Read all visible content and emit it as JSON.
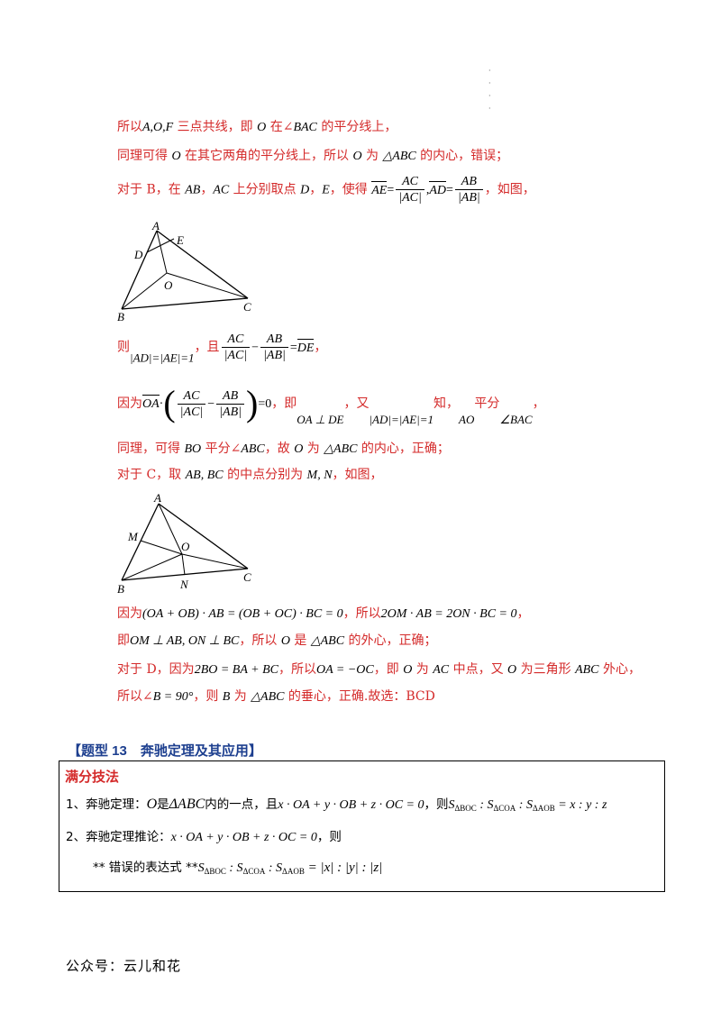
{
  "top_dots": "·\n·\n·\n·",
  "lines": {
    "l1": {
      "p1": "所以",
      "m1": "A,O,F",
      "p2": " 三点共线，即 ",
      "m2": "O",
      "p3": " 在∠",
      "m3": "BAC",
      "p4": " 的平分线上，"
    },
    "l2": {
      "p1": "同理可得 ",
      "m1": "O",
      "p2": " 在其它两角的平分线上，所以 ",
      "m2": "O",
      "p3": " 为 ",
      "m3": "△ABC",
      "p4": " 的内心，错误；"
    },
    "l3": {
      "p1": "对于 B，在 ",
      "m1": "AB",
      "p2": "，",
      "m2": "AC",
      "p3": " 上分别取点 ",
      "m3": "D",
      "p4": "，",
      "m4": "E",
      "p5": "，使得 ",
      "v1": "AE",
      "eq": "=",
      "f1n": "AC",
      "f1d": "|AC|",
      "comma": ",",
      "v2": "AD",
      "eq2": "=",
      "f2n": "AB",
      "f2d": "|AB|",
      "p6": "，如图，"
    },
    "l4": {
      "p1": "则",
      "m1": "|AD|=|AE|=1",
      "p2": "，且",
      "f1n": "AC",
      "f1d": "|AC|",
      "minus": "−",
      "f2n": "AB",
      "f2d": "|AB|",
      "eq": "=",
      "v1": "DE",
      "p3": "，"
    },
    "l5": {
      "p1": "因为",
      "v1": "OA",
      "dot": "·",
      "f1n": "AC",
      "f1d": "|AC|",
      "minus": "−",
      "f2n": "AB",
      "f2d": "|AB|",
      "eq0": "=0",
      "p2": "，即",
      "m1": "OA ⊥ DE",
      "p3": "，又",
      "m2": "|AD|=|AE|=1",
      "p4": "知，",
      "m3": "AO",
      "p5": "平分",
      "m4": "∠BAC",
      "p6": "，"
    },
    "l6": {
      "p1": "同理，可得 ",
      "m1": "BO",
      "p2": " 平分∠",
      "m2": "ABC",
      "p3": "，故 ",
      "m3": "O",
      "p4": " 为 ",
      "m4": "△ABC",
      "p5": " 的内心，正确；"
    },
    "l7": {
      "p1": "对于 C，取 ",
      "m1": "AB, BC",
      "p2": " 的中点分别为 ",
      "m2": "M, N",
      "p3": "，如图，"
    },
    "l8": {
      "p1": "因为",
      "m1": "(OA + OB) · AB = (OB + OC) · BC = 0",
      "p2": "，所以",
      "m2": "2OM · AB = 2ON · BC = 0",
      "p3": "，"
    },
    "l9": {
      "p1": "即",
      "m1": "OM ⊥ AB, ON ⊥ BC",
      "p2": "，所以 ",
      "m2": "O",
      "p3": " 是 ",
      "m3": "△ABC",
      "p4": " 的外心，正确；"
    },
    "l10": {
      "p1": "对于 D，因为",
      "m1": "2BO = BA + BC",
      "p2": "，所以",
      "m2": "OA = −OC",
      "p3": "，即 ",
      "m3": "O",
      "p4": " 为 ",
      "m4": "AC",
      "p5": " 中点，又 ",
      "m5": "O",
      "p6": " 为三角形 ",
      "m6": "ABC",
      "p7": " 外心，"
    },
    "l11": {
      "p1": "所以∠",
      "m1": "B = 90°",
      "p2": "，则 ",
      "m2": "B",
      "p3": " 为 ",
      "m3": "△ABC",
      "p4": " 的垂心，正确.故选：BCD"
    }
  },
  "figure1": {
    "labels": [
      "A",
      "D",
      "E",
      "O",
      "B",
      "C"
    ]
  },
  "figure2": {
    "labels": [
      "A",
      "M",
      "O",
      "N",
      "B",
      "C"
    ]
  },
  "heading": "【题型 13　奔驰定理及其应用】",
  "box": {
    "title": "满分技法",
    "b1": {
      "p1": "1、奔驰定理：",
      "m1": "O",
      "p2": "是",
      "m2": "ΔABC",
      "p3": "内的一点，且",
      "m3": "x · OA + y · OB + z · OC = 0",
      "p4": "，则",
      "m4": "S",
      "s1": "ΔBOC",
      "m5": " : S",
      "s2": "ΔCOA",
      "m6": " : S",
      "s3": "ΔAOB",
      "m7": " = x : y : z"
    },
    "b2": {
      "p1": "2、奔驰定理推论：",
      "m1": "x · OA + y · OB + z · OC = 0",
      "p2": "，则"
    },
    "b3": {
      "p1": "** 错误的表达式 **",
      "m4": "S",
      "s1": "ΔBOC",
      "m5": " : S",
      "s2": "ΔCOA",
      "m6": " : S",
      "s3": "ΔAOB",
      "m7": " = |x| : |y| : |z|"
    }
  },
  "footer": "公众号：云儿和花"
}
